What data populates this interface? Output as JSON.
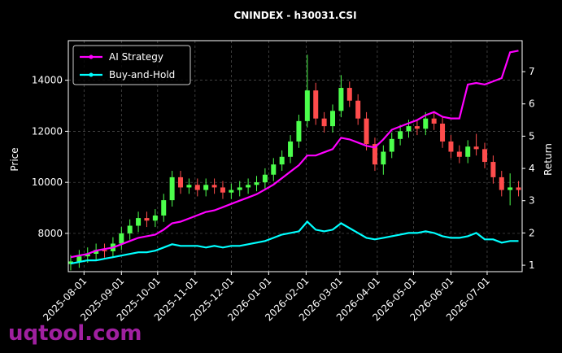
{
  "chart_data": {
    "type": "candlestick",
    "title": "CNINDEX - h30031.CSI",
    "ylabel": "Price",
    "y2label": "Return",
    "x": [
      "2025-07-21",
      "2025-07-28",
      "2025-08-04",
      "2025-08-11",
      "2025-08-18",
      "2025-08-25",
      "2025-09-01",
      "2025-09-08",
      "2025-09-15",
      "2025-09-22",
      "2025-09-29",
      "2025-10-06",
      "2025-10-13",
      "2025-10-20",
      "2025-10-27",
      "2025-11-03",
      "2025-11-10",
      "2025-11-17",
      "2025-11-24",
      "2025-12-01",
      "2025-12-08",
      "2025-12-15",
      "2025-12-22",
      "2025-12-29",
      "2026-01-05",
      "2026-01-12",
      "2026-01-19",
      "2026-01-26",
      "2026-02-02",
      "2026-02-09",
      "2026-02-16",
      "2026-02-23",
      "2026-03-02",
      "2026-03-09",
      "2026-03-16",
      "2026-03-23",
      "2026-03-30",
      "2026-04-06",
      "2026-04-13",
      "2026-04-20",
      "2026-04-27",
      "2026-05-04",
      "2026-05-11",
      "2026-05-18",
      "2026-05-25",
      "2026-06-01",
      "2026-06-08",
      "2026-06-15",
      "2026-06-22",
      "2026-06-29",
      "2026-07-06",
      "2026-07-13",
      "2026-07-20",
      "2026-07-27"
    ],
    "open": [
      6800,
      6900,
      7100,
      7200,
      7350,
      7300,
      7600,
      8000,
      8300,
      8600,
      8500,
      8700,
      9300,
      10200,
      9800,
      9900,
      9700,
      9900,
      9800,
      9600,
      9700,
      9800,
      9900,
      10000,
      10300,
      10700,
      11000,
      11600,
      12400,
      13600,
      12500,
      12200,
      12800,
      13700,
      13200,
      12500,
      11500,
      10700,
      11200,
      11700,
      12000,
      12200,
      12100,
      12500,
      12300,
      11600,
      11200,
      11000,
      11400,
      11300,
      10800,
      10200,
      9700,
      9800
    ],
    "high": [
      7150,
      7350,
      7450,
      7600,
      7600,
      7850,
      8250,
      8550,
      8850,
      8850,
      8950,
      9550,
      10450,
      10450,
      10150,
      10150,
      10150,
      10150,
      10050,
      9950,
      10050,
      10150,
      10250,
      10550,
      10950,
      11250,
      11850,
      12650,
      15000,
      13900,
      12750,
      13050,
      14200,
      13950,
      13450,
      12750,
      11750,
      11450,
      11950,
      12250,
      12450,
      12450,
      12750,
      12750,
      12550,
      11850,
      11450,
      11650,
      11900,
      11550,
      11050,
      10450,
      10350,
      10050
    ],
    "low": [
      6550,
      6650,
      6850,
      6950,
      7050,
      7050,
      7350,
      7750,
      8050,
      8250,
      8250,
      8450,
      9050,
      9550,
      9550,
      9450,
      9450,
      9550,
      9350,
      9350,
      9450,
      9550,
      9650,
      9750,
      10050,
      10450,
      10750,
      11350,
      12150,
      12250,
      11950,
      11950,
      12550,
      12950,
      12250,
      11250,
      10450,
      10300,
      10950,
      11450,
      11750,
      11850,
      11850,
      12050,
      11350,
      10950,
      10750,
      10750,
      11050,
      10550,
      9950,
      9450,
      9100,
      9450
    ],
    "close": [
      6900,
      7100,
      7200,
      7350,
      7300,
      7600,
      8000,
      8300,
      8600,
      8500,
      8700,
      9300,
      10200,
      9800,
      9900,
      9700,
      9900,
      9800,
      9600,
      9700,
      9800,
      9900,
      10000,
      10300,
      10700,
      11000,
      11600,
      12400,
      13600,
      12500,
      12200,
      12800,
      13700,
      13200,
      12500,
      11500,
      10700,
      11200,
      11700,
      12000,
      12200,
      12100,
      12500,
      12300,
      11600,
      11200,
      11000,
      11400,
      11300,
      10800,
      10200,
      9700,
      9800,
      9700
    ],
    "up_color": "#4cff4c",
    "down_color": "#ff4c4c",
    "series": [
      {
        "name": "AI Strategy",
        "color": "#ff00ff",
        "axis": "y2",
        "values": [
          1.25,
          1.3,
          1.35,
          1.45,
          1.5,
          1.55,
          1.65,
          1.75,
          1.85,
          1.9,
          1.95,
          2.1,
          2.3,
          2.35,
          2.45,
          2.55,
          2.65,
          2.7,
          2.8,
          2.9,
          3.0,
          3.1,
          3.2,
          3.35,
          3.5,
          3.7,
          3.9,
          4.1,
          4.4,
          4.4,
          4.5,
          4.6,
          4.95,
          4.9,
          4.8,
          4.7,
          4.65,
          4.9,
          5.2,
          5.3,
          5.4,
          5.5,
          5.65,
          5.75,
          5.6,
          5.55,
          5.55,
          6.6,
          6.65,
          6.6,
          6.7,
          6.8,
          7.6,
          7.65
        ]
      },
      {
        "name": "Buy-and-Hold",
        "color": "#00ffff",
        "axis": "y2",
        "values": [
          1.05,
          1.1,
          1.15,
          1.15,
          1.2,
          1.25,
          1.3,
          1.35,
          1.4,
          1.4,
          1.45,
          1.55,
          1.65,
          1.6,
          1.6,
          1.6,
          1.55,
          1.6,
          1.55,
          1.6,
          1.6,
          1.65,
          1.7,
          1.75,
          1.85,
          1.95,
          2.0,
          2.05,
          2.35,
          2.1,
          2.05,
          2.1,
          2.3,
          2.15,
          2.0,
          1.85,
          1.8,
          1.85,
          1.9,
          1.95,
          2.0,
          2.0,
          2.05,
          2.0,
          1.9,
          1.85,
          1.85,
          1.9,
          2.0,
          1.8,
          1.8,
          1.7,
          1.75,
          1.75
        ]
      }
    ],
    "xlim": [
      "2025-07-19",
      "2026-07-30"
    ],
    "xticks": [
      "2025-08-01",
      "2025-09-01",
      "2025-10-01",
      "2025-11-01",
      "2025-12-01",
      "2026-01-01",
      "2026-02-01",
      "2026-03-01",
      "2026-04-01",
      "2026-05-01",
      "2026-06-01",
      "2026-07-01"
    ],
    "ylim": [
      6500,
      15550
    ],
    "yticks": [
      8000,
      10000,
      12000,
      14000
    ],
    "y2lim": [
      0.8,
      7.96
    ],
    "y2ticks": [
      1,
      2,
      3,
      4,
      5,
      6,
      7
    ],
    "grid": true,
    "legend": "upper left"
  },
  "watermark": "uqtool.com"
}
